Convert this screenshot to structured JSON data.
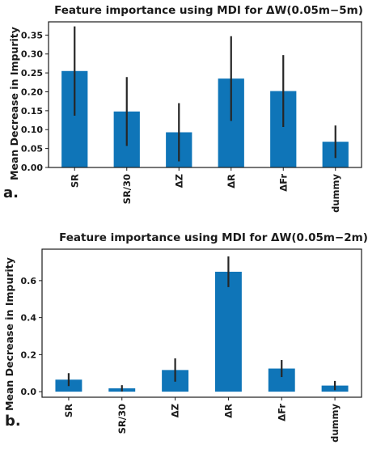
{
  "colors": {
    "bar": "#0f75b8",
    "error_bar": "#262626",
    "axis": "#1a1a1a",
    "background": "#ffffff"
  },
  "chart_data": [
    {
      "type": "bar",
      "panel_label": "a.",
      "title": "Feature importance using MDI for ΔW(0.05m−5m)",
      "xlabel": "",
      "ylabel": "Mean Decrease in Impurity",
      "categories": [
        "SR",
        "SR/30",
        "ΔZ",
        "ΔR",
        "ΔFr",
        "dummy"
      ],
      "values": [
        0.255,
        0.148,
        0.093,
        0.235,
        0.202,
        0.068
      ],
      "error": [
        0.118,
        0.091,
        0.077,
        0.112,
        0.095,
        0.043
      ],
      "ylim": [
        0,
        0.385
      ],
      "yticks": [
        0.0,
        0.05,
        0.1,
        0.15,
        0.2,
        0.25,
        0.3,
        0.35
      ],
      "ytick_labels": [
        "0.00",
        "0.05",
        "0.10",
        "0.15",
        "0.20",
        "0.25",
        "0.30",
        "0.35"
      ],
      "grid": false,
      "legend": "none"
    },
    {
      "type": "bar",
      "panel_label": "b.",
      "title": "Feature importance using MDI for ΔW(0.05m−2m)",
      "xlabel": "",
      "ylabel": "Mean Decrease in Impurity",
      "categories": [
        "SR",
        "SR/30",
        "ΔZ",
        "ΔR",
        "ΔFr",
        "dummy"
      ],
      "values": [
        0.065,
        0.018,
        0.117,
        0.648,
        0.125,
        0.033
      ],
      "error": [
        0.035,
        0.017,
        0.063,
        0.083,
        0.046,
        0.025
      ],
      "ylim": [
        -0.03,
        0.77
      ],
      "yticks": [
        0.0,
        0.2,
        0.4,
        0.6
      ],
      "ytick_labels": [
        "0.0",
        "0.2",
        "0.4",
        "0.6"
      ],
      "grid": false,
      "legend": "none"
    }
  ]
}
